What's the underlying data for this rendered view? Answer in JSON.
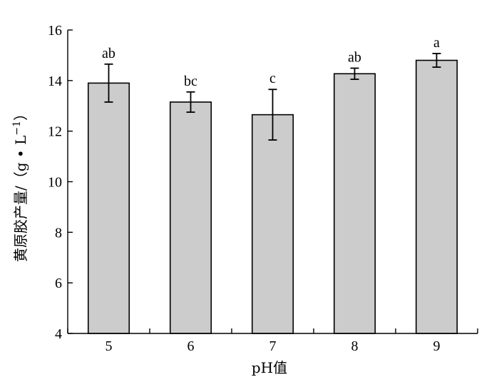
{
  "chart_data": {
    "type": "bar",
    "categories": [
      "5",
      "6",
      "7",
      "8",
      "9"
    ],
    "values": [
      13.9,
      13.15,
      12.65,
      14.27,
      14.8
    ],
    "errors": [
      0.75,
      0.4,
      1.0,
      0.22,
      0.27
    ],
    "significance": [
      "ab",
      "bc",
      "c",
      "ab",
      "a"
    ],
    "xlabel": "pH值",
    "ylabel": "黄原胶产量/（g • L",
    "ylabel_superscript": "−1",
    "ylabel_close": "）",
    "ylim": [
      4,
      16
    ],
    "yticks": [
      4,
      6,
      8,
      10,
      12,
      14,
      16
    ],
    "grid": false,
    "bar_color": "#cccccc"
  }
}
